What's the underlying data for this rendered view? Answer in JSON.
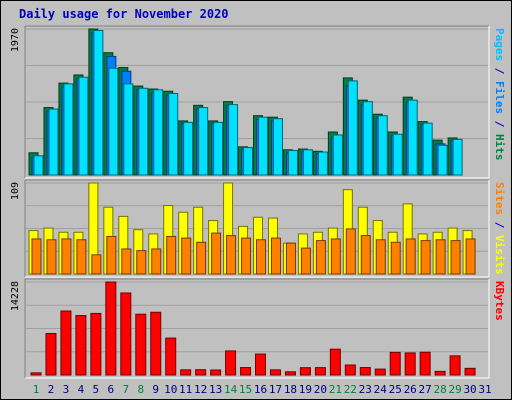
{
  "chart_data": {
    "title": "Daily usage for November 2020",
    "type": "bar",
    "categories": [
      "1",
      "2",
      "3",
      "4",
      "5",
      "6",
      "7",
      "8",
      "9",
      "10",
      "11",
      "12",
      "13",
      "14",
      "15",
      "16",
      "17",
      "18",
      "19",
      "20",
      "21",
      "22",
      "23",
      "24",
      "25",
      "26",
      "27",
      "28",
      "29",
      "30",
      "31"
    ],
    "weekend_days": [
      "1",
      "7",
      "8",
      "14",
      "15",
      "21",
      "22",
      "28",
      "29"
    ],
    "panels": [
      {
        "name": "pages-files-hits",
        "ymax": 1970,
        "ymax_label": "1970",
        "series": [
          {
            "name": "Hits",
            "color": "#008040",
            "values": [
              300,
              910,
              1240,
              1350,
              1970,
              1650,
              1450,
              1200,
              1160,
              1130,
              730,
              940,
              730,
              990,
              380,
              800,
              780,
              340,
              350,
              320,
              580,
              1310,
              1010,
              820,
              580,
              1050,
              720,
              470,
              500,
              0,
              0
            ]
          },
          {
            "name": "Files",
            "color": "#0080ff",
            "values": [
              240,
              860,
              1190,
              1300,
              1920,
              1600,
              1400,
              1150,
              1110,
              1080,
              700,
              900,
              700,
              930,
              350,
              750,
              730,
              300,
              310,
              290,
              500,
              1200,
              950,
              770,
              530,
              980,
              680,
              420,
              470,
              0,
              0
            ]
          },
          {
            "name": "Pages",
            "color": "#00e0ff",
            "values": [
              260,
              890,
              1230,
              1320,
              1950,
              1440,
              1230,
              1170,
              1150,
              1100,
              710,
              910,
              710,
              950,
              370,
              780,
              760,
              330,
              340,
              310,
              540,
              1270,
              990,
              800,
              550,
              1010,
              700,
              400,
              480,
              0,
              0
            ]
          }
        ],
        "legend": [
          {
            "text": "Pages",
            "color": "#00c0ff"
          },
          {
            "text": " / ",
            "color": "#0000c0"
          },
          {
            "text": "Files",
            "color": "#0080ff"
          },
          {
            "text": " / ",
            "color": "#0000c0"
          },
          {
            "text": "Hits",
            "color": "#008040"
          }
        ]
      },
      {
        "name": "sites-visits",
        "ymax": 109,
        "ymax_label": "109",
        "series": [
          {
            "name": "Visits",
            "color": "#ffff00",
            "values": [
              52,
              55,
              50,
              50,
              109,
              80,
              69,
              53,
              48,
              82,
              74,
              80,
              64,
              109,
              57,
              68,
              67,
              37,
              48,
              50,
              55,
              101,
              80,
              64,
              50,
              84,
              48,
              50,
              55,
              52,
              0
            ]
          },
          {
            "name": "Sites",
            "color": "#ff8000",
            "values": [
              42,
              41,
              42,
              41,
              23,
              45,
              30,
              28,
              30,
              45,
              43,
              38,
              49,
              46,
              43,
              41,
              43,
              37,
              31,
              40,
              42,
              54,
              46,
              41,
              38,
              42,
              40,
              41,
              40,
              42,
              0
            ]
          }
        ],
        "legend": [
          {
            "text": "Sites",
            "color": "#ff8000"
          },
          {
            "text": " / ",
            "color": "#0000c0"
          },
          {
            "text": "Visits",
            "color": "#ffff00"
          }
        ]
      },
      {
        "name": "kbytes",
        "ymax": 14228,
        "ymax_label": "14228",
        "series": [
          {
            "name": "KBytes",
            "color": "#ff0000",
            "values": [
              330,
              6350,
              9790,
              9100,
              9420,
              14228,
              12550,
              9300,
              9600,
              5650,
              790,
              810,
              760,
              3680,
              1140,
              3200,
              790,
              490,
              1120,
              1130,
              3950,
              1530,
              1140,
              900,
              3460,
              3380,
              3480,
              550,
              2930,
              1020,
              0
            ]
          }
        ],
        "legend": [
          {
            "text": "KBytes",
            "color": "#ff0000"
          }
        ]
      }
    ]
  }
}
